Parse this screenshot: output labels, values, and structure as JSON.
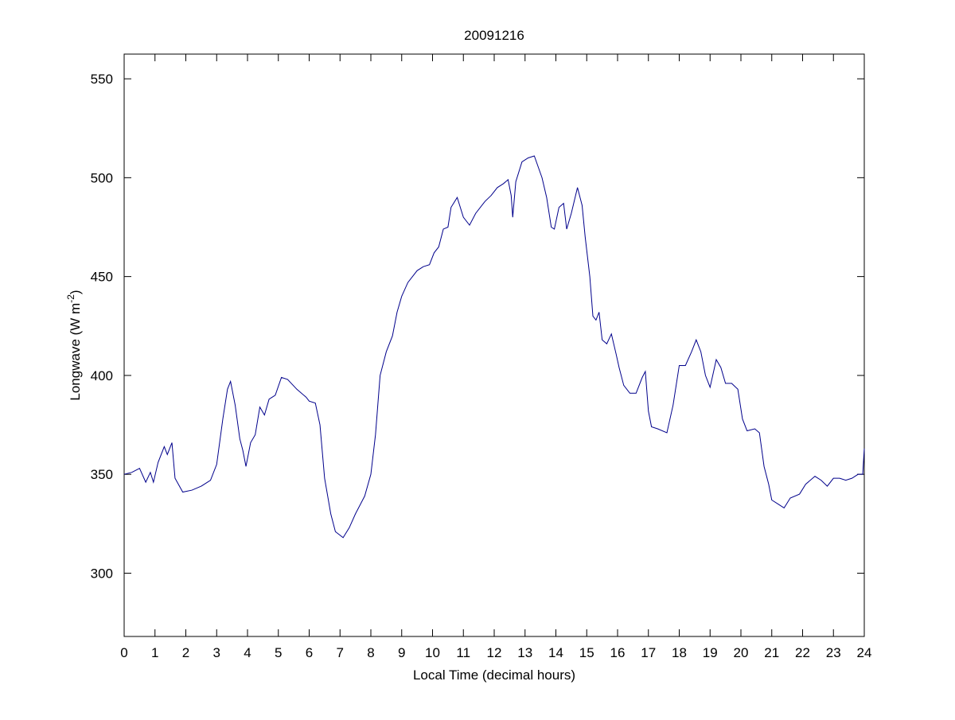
{
  "chart_data": {
    "type": "line",
    "title": "20091216",
    "xlabel": "Local Time (decimal hours)",
    "ylabel": {
      "text": "Longwave (W m",
      "superscript": "-2",
      "suffix": ")"
    },
    "xlim": [
      0,
      24
    ],
    "xticks": [
      0,
      1,
      2,
      3,
      4,
      5,
      6,
      7,
      8,
      9,
      10,
      11,
      12,
      13,
      14,
      15,
      16,
      17,
      18,
      19,
      20,
      21,
      22,
      23,
      24
    ],
    "ylim": [
      268,
      562.5
    ],
    "yticks": [
      300,
      350,
      400,
      450,
      500,
      550
    ],
    "grid": false,
    "series": [
      {
        "color": "#00008b",
        "x": [
          0,
          0.25,
          0.5,
          0.7,
          0.85,
          0.95,
          1.1,
          1.3,
          1.4,
          1.55,
          1.65,
          1.9,
          2.2,
          2.5,
          2.8,
          3.0,
          3.2,
          3.35,
          3.45,
          3.6,
          3.75,
          3.85,
          3.95,
          4.1,
          4.25,
          4.4,
          4.55,
          4.7,
          4.9,
          5.1,
          5.3,
          5.6,
          5.9,
          6.0,
          6.2,
          6.35,
          6.5,
          6.7,
          6.85,
          7.1,
          7.3,
          7.5,
          7.8,
          8.0,
          8.15,
          8.3,
          8.5,
          8.7,
          8.85,
          9.0,
          9.2,
          9.5,
          9.7,
          9.9,
          10.05,
          10.2,
          10.35,
          10.5,
          10.6,
          10.8,
          11.0,
          11.2,
          11.4,
          11.7,
          11.9,
          12.1,
          12.3,
          12.45,
          12.55,
          12.6,
          12.7,
          12.9,
          13.1,
          13.3,
          13.55,
          13.7,
          13.85,
          13.95,
          14.1,
          14.25,
          14.35,
          14.5,
          14.7,
          14.85,
          14.95,
          15.1,
          15.2,
          15.3,
          15.4,
          15.5,
          15.65,
          15.8,
          15.95,
          16.05,
          16.2,
          16.4,
          16.6,
          16.8,
          16.9,
          17.0,
          17.1,
          17.3,
          17.6,
          17.8,
          18.0,
          18.2,
          18.4,
          18.55,
          18.7,
          18.85,
          19.0,
          19.2,
          19.35,
          19.5,
          19.7,
          19.9,
          20.05,
          20.2,
          20.45,
          20.6,
          20.75,
          20.9,
          21.0,
          21.2,
          21.4,
          21.6,
          21.9,
          22.1,
          22.4,
          22.6,
          22.8,
          23.0,
          23.2,
          23.4,
          23.6,
          23.8,
          23.95,
          24.0
        ],
        "values": [
          350,
          351,
          353,
          346,
          351,
          346,
          356,
          364,
          360,
          366,
          348,
          341,
          342,
          344,
          347,
          355,
          378,
          393,
          397,
          385,
          368,
          362,
          354,
          366,
          370,
          384,
          380,
          388,
          390,
          399,
          398,
          393,
          389,
          387,
          386,
          375,
          348,
          330,
          321,
          318,
          323,
          330,
          339,
          350,
          370,
          400,
          412,
          420,
          432,
          440,
          447,
          453,
          455,
          456,
          462,
          465,
          474,
          475,
          485,
          490,
          480,
          476,
          482,
          488,
          491,
          495,
          497,
          499,
          491,
          480,
          498,
          508,
          510,
          511,
          500,
          490,
          475,
          474,
          485,
          487,
          474,
          482,
          495,
          486,
          470,
          450,
          430,
          428,
          432,
          418,
          416,
          421,
          411,
          404,
          395,
          391,
          391,
          399,
          402,
          382,
          374,
          373,
          371,
          385,
          405,
          405,
          412,
          418,
          412,
          400,
          394,
          408,
          404,
          396,
          396,
          393,
          378,
          372,
          373,
          371,
          354,
          345,
          337,
          335,
          333,
          338,
          340,
          345,
          349,
          347,
          344,
          348,
          348,
          347,
          348,
          350,
          350,
          363
        ]
      }
    ]
  }
}
